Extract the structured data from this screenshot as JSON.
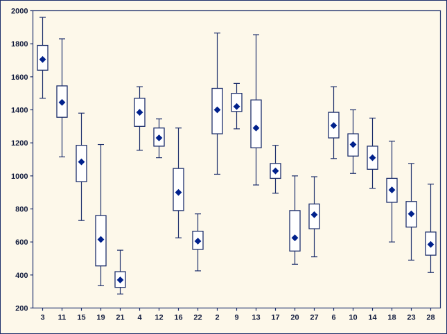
{
  "chart_data": {
    "type": "box",
    "title": "",
    "xlabel": "",
    "ylabel": "",
    "ylim": [
      200,
      2000
    ],
    "ytick_step": 200,
    "ytick_labels": [
      "200",
      "400",
      "600",
      "800",
      "1000",
      "1200",
      "1400",
      "1600",
      "1800",
      "2000"
    ],
    "grid": false,
    "legend": false,
    "colors": {
      "background": "#fdf8ea",
      "frame": "#1c2e6b",
      "box_stroke": "#1c2e6b",
      "box_fill": "#ffffff",
      "marker": "#00218c",
      "tick_text": "#101a3c"
    },
    "categories": [
      "3",
      "11",
      "15",
      "19",
      "21",
      "4",
      "12",
      "16",
      "22",
      "2",
      "9",
      "13",
      "17",
      "20",
      "27",
      "6",
      "10",
      "14",
      "18",
      "23",
      "28"
    ],
    "boxes": [
      {
        "label": "3",
        "low": 1470,
        "q1": 1640,
        "mid": 1705,
        "q3": 1790,
        "high": 1960
      },
      {
        "label": "11",
        "low": 1115,
        "q1": 1355,
        "mid": 1445,
        "q3": 1545,
        "high": 1830
      },
      {
        "label": "15",
        "low": 730,
        "q1": 965,
        "mid": 1085,
        "q3": 1185,
        "high": 1380
      },
      {
        "label": "19",
        "low": 335,
        "q1": 455,
        "mid": 615,
        "q3": 760,
        "high": 1190
      },
      {
        "label": "21",
        "low": 285,
        "q1": 325,
        "mid": 370,
        "q3": 420,
        "high": 550
      },
      {
        "label": "4",
        "low": 1155,
        "q1": 1300,
        "mid": 1385,
        "q3": 1470,
        "high": 1540
      },
      {
        "label": "12",
        "low": 1110,
        "q1": 1180,
        "mid": 1230,
        "q3": 1290,
        "high": 1345
      },
      {
        "label": "16",
        "low": 625,
        "q1": 790,
        "mid": 900,
        "q3": 1045,
        "high": 1290
      },
      {
        "label": "22",
        "low": 425,
        "q1": 555,
        "mid": 605,
        "q3": 665,
        "high": 770
      },
      {
        "label": "2",
        "low": 1010,
        "q1": 1255,
        "mid": 1400,
        "q3": 1530,
        "high": 1865
      },
      {
        "label": "9",
        "low": 1285,
        "q1": 1390,
        "mid": 1420,
        "q3": 1500,
        "high": 1560
      },
      {
        "label": "13",
        "low": 945,
        "q1": 1170,
        "mid": 1290,
        "q3": 1460,
        "high": 1855
      },
      {
        "label": "17",
        "low": 895,
        "q1": 985,
        "mid": 1030,
        "q3": 1075,
        "high": 1185
      },
      {
        "label": "20",
        "low": 465,
        "q1": 545,
        "mid": 625,
        "q3": 790,
        "high": 1000
      },
      {
        "label": "27",
        "low": 510,
        "q1": 680,
        "mid": 765,
        "q3": 830,
        "high": 995
      },
      {
        "label": "6",
        "low": 1105,
        "q1": 1230,
        "mid": 1305,
        "q3": 1385,
        "high": 1540
      },
      {
        "label": "10",
        "low": 1015,
        "q1": 1120,
        "mid": 1190,
        "q3": 1255,
        "high": 1400
      },
      {
        "label": "14",
        "low": 925,
        "q1": 1040,
        "mid": 1110,
        "q3": 1180,
        "high": 1350
      },
      {
        "label": "18",
        "low": 600,
        "q1": 840,
        "mid": 915,
        "q3": 985,
        "high": 1210
      },
      {
        "label": "23",
        "low": 490,
        "q1": 690,
        "mid": 770,
        "q3": 845,
        "high": 1075
      },
      {
        "label": "28",
        "low": 415,
        "q1": 520,
        "mid": 585,
        "q3": 660,
        "high": 950
      }
    ]
  }
}
